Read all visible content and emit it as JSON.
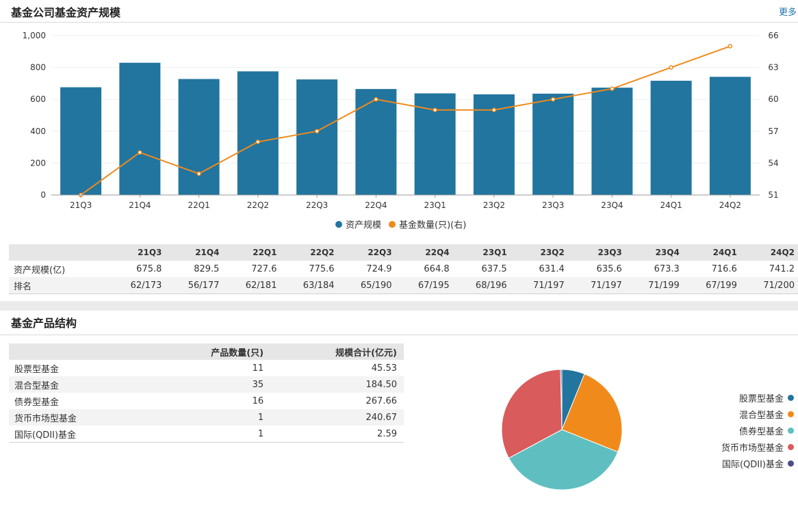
{
  "section1": {
    "title": "基金公司基金资产规模",
    "more": "更多"
  },
  "chart_data": {
    "type": "bar",
    "categories": [
      "21Q3",
      "21Q4",
      "22Q1",
      "22Q2",
      "22Q3",
      "22Q4",
      "23Q1",
      "23Q2",
      "23Q3",
      "23Q4",
      "24Q1",
      "24Q2"
    ],
    "series": [
      {
        "name": "资产规模",
        "type": "bar",
        "axis": "left",
        "color": "#21759f",
        "values": [
          675.8,
          829.5,
          727.6,
          775.6,
          724.9,
          664.8,
          637.5,
          631.4,
          635.6,
          673.3,
          716.6,
          741.2
        ]
      },
      {
        "name": "基金数量(只)(右)",
        "type": "line",
        "axis": "right",
        "color": "#f08a1b",
        "values": [
          51,
          55,
          53,
          56,
          57,
          60,
          59,
          59,
          60,
          61,
          63,
          65
        ]
      }
    ],
    "y_left": {
      "ticks": [
        "0",
        "200",
        "400",
        "600",
        "800",
        "1,000"
      ],
      "range": [
        0,
        1000
      ]
    },
    "y_right": {
      "ticks": [
        "51",
        "54",
        "57",
        "60",
        "63",
        "66"
      ],
      "range": [
        51,
        66
      ]
    },
    "grid": true,
    "legend": "bottom-center"
  },
  "quarter_table": {
    "headers": [
      "",
      "21Q3",
      "21Q4",
      "22Q1",
      "22Q2",
      "22Q3",
      "22Q4",
      "23Q1",
      "23Q2",
      "23Q3",
      "23Q4",
      "24Q1",
      "24Q2"
    ],
    "rows": [
      [
        "资产规模(亿)",
        "675.8",
        "829.5",
        "727.6",
        "775.6",
        "724.9",
        "664.8",
        "637.5",
        "631.4",
        "635.6",
        "673.3",
        "716.6",
        "741.2"
      ],
      [
        "排名",
        "62/173",
        "56/177",
        "62/181",
        "63/184",
        "65/190",
        "67/195",
        "68/196",
        "71/197",
        "71/197",
        "71/199",
        "67/199",
        "71/200"
      ]
    ]
  },
  "section2": {
    "title": "基金产品结构"
  },
  "product_table": {
    "headers": [
      "",
      "产品数量(只)",
      "规模合计(亿元)"
    ],
    "rows": [
      [
        "股票型基金",
        "11",
        "45.53"
      ],
      [
        "混合型基金",
        "35",
        "184.50"
      ],
      [
        "债券型基金",
        "16",
        "267.66"
      ],
      [
        "货币市场型基金",
        "1",
        "240.67"
      ],
      [
        "国际(QDII)基金",
        "1",
        "2.59"
      ]
    ]
  },
  "pie": {
    "slices": [
      {
        "name": "股票型基金",
        "value": 45.53,
        "color": "#21759f"
      },
      {
        "name": "混合型基金",
        "value": 184.5,
        "color": "#f08a1b"
      },
      {
        "name": "债券型基金",
        "value": 267.66,
        "color": "#5fbfc0"
      },
      {
        "name": "货币市场型基金",
        "value": 240.67,
        "color": "#d95b5b"
      },
      {
        "name": "国际(QDII)基金",
        "value": 2.59,
        "color": "#4a4c8c"
      }
    ]
  }
}
